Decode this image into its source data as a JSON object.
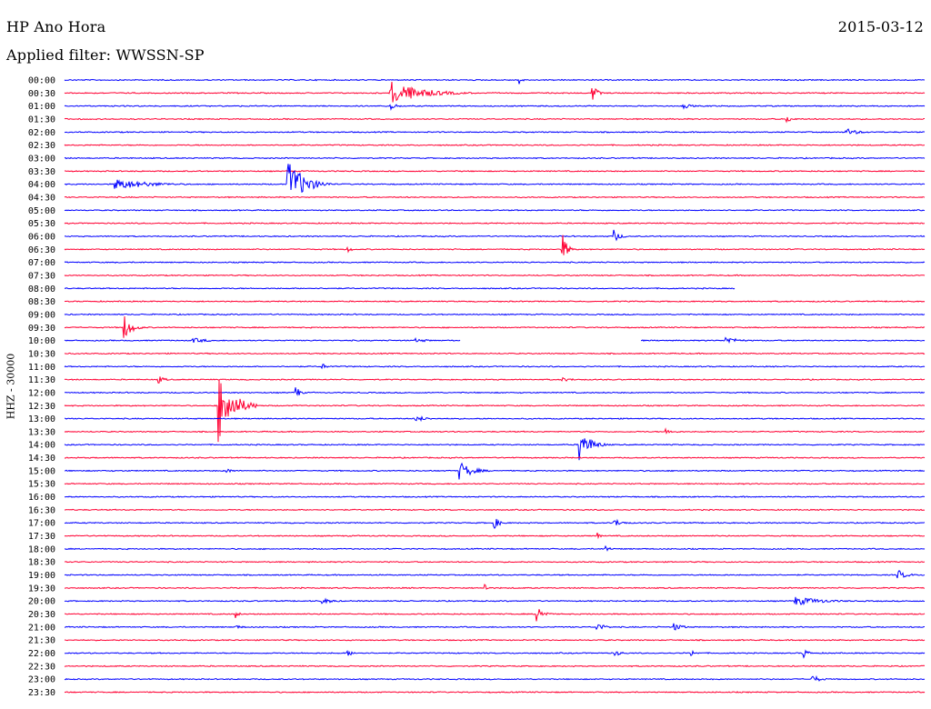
{
  "header": {
    "station": "HP Ano Hora",
    "date": "2015-03-12",
    "filter": "Applied filter: WWSSN-SP"
  },
  "chart_data": {
    "type": "helicorder",
    "title": "HP Ano Hora",
    "date": "2015-03-12",
    "ylabel": "HHZ - 30000",
    "colors": [
      "#0000ff",
      "#ff0033"
    ],
    "row_labels": [
      "00:00",
      "00:30",
      "01:00",
      "01:30",
      "02:00",
      "02:30",
      "03:00",
      "03:30",
      "04:00",
      "04:30",
      "05:00",
      "05:30",
      "06:00",
      "06:30",
      "07:00",
      "07:30",
      "08:00",
      "08:30",
      "09:00",
      "09:30",
      "10:00",
      "10:30",
      "11:00",
      "11:30",
      "12:00",
      "12:30",
      "13:00",
      "13:30",
      "14:00",
      "14:30",
      "15:00",
      "15:30",
      "16:00",
      "16:30",
      "17:00",
      "17:30",
      "18:00",
      "18:30",
      "19:00",
      "19:30",
      "20:00",
      "20:30",
      "21:00",
      "21:30",
      "22:00",
      "22:30",
      "23:00",
      "23:30"
    ],
    "x_range_minutes": [
      0,
      30
    ],
    "events": [
      {
        "row": 0,
        "t": 0.53,
        "amp": 5,
        "dur": 0.01
      },
      {
        "row": 1,
        "t": 0.38,
        "amp": 13,
        "dur": 0.1
      },
      {
        "row": 1,
        "t": 0.615,
        "amp": 8,
        "dur": 0.015
      },
      {
        "row": 2,
        "t": 0.38,
        "amp": 4,
        "dur": 0.02
      },
      {
        "row": 2,
        "t": 0.72,
        "amp": 3,
        "dur": 0.03
      },
      {
        "row": 3,
        "t": 0.84,
        "amp": 4,
        "dur": 0.02
      },
      {
        "row": 4,
        "t": 0.91,
        "amp": 4,
        "dur": 0.04
      },
      {
        "row": 8,
        "t": 0.06,
        "amp": 6,
        "dur": 0.11
      },
      {
        "row": 8,
        "t": 0.26,
        "amp": 28,
        "dur": 0.05
      },
      {
        "row": 12,
        "t": 0.64,
        "amp": 6,
        "dur": 0.02
      },
      {
        "row": 13,
        "t": 0.58,
        "amp": 14,
        "dur": 0.015
      },
      {
        "row": 13,
        "t": 0.33,
        "amp": 3,
        "dur": 0.015
      },
      {
        "row": 19,
        "t": 0.07,
        "amp": 13,
        "dur": 0.025
      },
      {
        "row": 20,
        "t": 0.15,
        "amp": 3,
        "dur": 0.05
      },
      {
        "row": 20,
        "t": 0.41,
        "amp": 2,
        "dur": 0.05
      },
      {
        "row": 20,
        "t": 0.77,
        "amp": 4,
        "dur": 0.04
      },
      {
        "row": 22,
        "t": 0.3,
        "amp": 3,
        "dur": 0.02
      },
      {
        "row": 23,
        "t": 0.11,
        "amp": 4,
        "dur": 0.02
      },
      {
        "row": 23,
        "t": 0.58,
        "amp": 2,
        "dur": 0.04
      },
      {
        "row": 24,
        "t": 0.27,
        "amp": 6,
        "dur": 0.015
      },
      {
        "row": 25,
        "t": 0.18,
        "amp": 38,
        "dur": 0.045
      },
      {
        "row": 26,
        "t": 0.41,
        "amp": 3,
        "dur": 0.04
      },
      {
        "row": 27,
        "t": 0.7,
        "amp": 3,
        "dur": 0.03
      },
      {
        "row": 28,
        "t": 0.6,
        "amp": 16,
        "dur": 0.035
      },
      {
        "row": 30,
        "t": 0.46,
        "amp": 10,
        "dur": 0.04
      },
      {
        "row": 30,
        "t": 0.19,
        "amp": 2,
        "dur": 0.03
      },
      {
        "row": 34,
        "t": 0.5,
        "amp": 6,
        "dur": 0.02
      },
      {
        "row": 34,
        "t": 0.64,
        "amp": 4,
        "dur": 0.03
      },
      {
        "row": 35,
        "t": 0.62,
        "amp": 3,
        "dur": 0.01
      },
      {
        "row": 36,
        "t": 0.63,
        "amp": 5,
        "dur": 0.01
      },
      {
        "row": 38,
        "t": 0.97,
        "amp": 5,
        "dur": 0.03
      },
      {
        "row": 39,
        "t": 0.49,
        "amp": 4,
        "dur": 0.01
      },
      {
        "row": 40,
        "t": 0.3,
        "amp": 3,
        "dur": 0.04
      },
      {
        "row": 40,
        "t": 0.85,
        "amp": 5,
        "dur": 0.09
      },
      {
        "row": 41,
        "t": 0.55,
        "amp": 10,
        "dur": 0.02
      },
      {
        "row": 41,
        "t": 0.2,
        "amp": 4,
        "dur": 0.01
      },
      {
        "row": 42,
        "t": 0.62,
        "amp": 4,
        "dur": 0.03
      },
      {
        "row": 42,
        "t": 0.71,
        "amp": 4,
        "dur": 0.03
      },
      {
        "row": 42,
        "t": 0.2,
        "amp": 2,
        "dur": 0.03
      },
      {
        "row": 44,
        "t": 0.33,
        "amp": 3,
        "dur": 0.02
      },
      {
        "row": 44,
        "t": 0.64,
        "amp": 3,
        "dur": 0.03
      },
      {
        "row": 44,
        "t": 0.86,
        "amp": 5,
        "dur": 0.015
      },
      {
        "row": 44,
        "t": 0.73,
        "amp": 3,
        "dur": 0.015
      },
      {
        "row": 46,
        "t": 0.87,
        "amp": 4,
        "dur": 0.03
      }
    ],
    "gaps": [
      {
        "row": 16,
        "t0": 0.78,
        "t1": 1.0
      },
      {
        "row": 20,
        "t0": 0.46,
        "t1": 0.67
      }
    ]
  }
}
